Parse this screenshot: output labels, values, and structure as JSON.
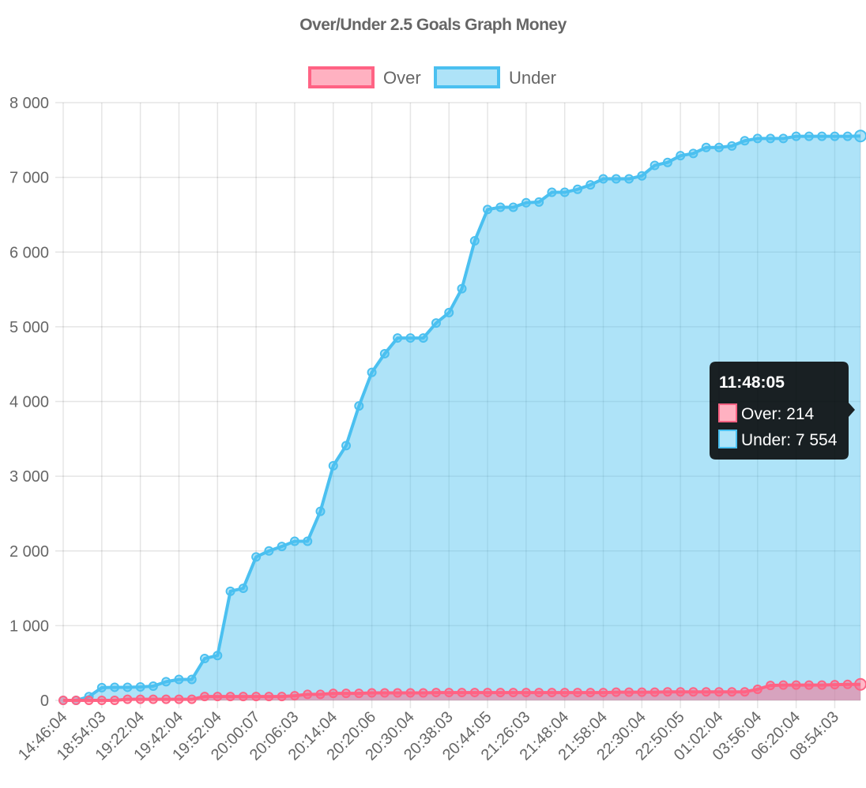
{
  "chart_data": {
    "type": "area",
    "title": "Over/Under 2.5 Goals Graph Money",
    "ylim": [
      0,
      8000
    ],
    "yticks": [
      0,
      1000,
      2000,
      3000,
      4000,
      5000,
      6000,
      7000,
      8000
    ],
    "ytick_labels": [
      "0",
      "1 000",
      "2 000",
      "3 000",
      "4 000",
      "5 000",
      "6 000",
      "7 000",
      "8 000"
    ],
    "xtick_labels": [
      "14:46:04",
      "18:54:03",
      "19:22:04",
      "19:42:04",
      "19:52:04",
      "20:00:07",
      "20:06:03",
      "20:14:04",
      "20:20:06",
      "20:30:04",
      "20:38:03",
      "20:44:05",
      "21:26:03",
      "21:48:04",
      "21:58:04",
      "22:30:04",
      "22:50:05",
      "01:02:04",
      "03:56:04",
      "06:20:04",
      "08:54:03"
    ],
    "n_points": 63,
    "grid": true,
    "legend": "top",
    "series": [
      {
        "name": "Over",
        "color": "#ff6384",
        "fill": "rgba(255,99,132,0.5)",
        "values": [
          0,
          0,
          0,
          0,
          0,
          14,
          14,
          14,
          14,
          14,
          14,
          52,
          52,
          52,
          52,
          52,
          52,
          52,
          62,
          80,
          80,
          94,
          94,
          94,
          100,
          100,
          100,
          100,
          100,
          105,
          105,
          105,
          105,
          105,
          105,
          105,
          105,
          105,
          105,
          105,
          105,
          105,
          105,
          110,
          110,
          110,
          110,
          114,
          114,
          114,
          114,
          114,
          114,
          114,
          148,
          200,
          205,
          205,
          205,
          205,
          210,
          214,
          214
        ]
      },
      {
        "name": "Under",
        "color": "#4bc0f0",
        "fill": "rgba(75,192,240,0.45)",
        "values": [
          0,
          0,
          50,
          170,
          175,
          175,
          180,
          190,
          250,
          280,
          280,
          560,
          600,
          1460,
          1500,
          1920,
          2000,
          2060,
          2130,
          2130,
          2530,
          3140,
          3410,
          3940,
          4390,
          4640,
          4850,
          4850,
          4850,
          5050,
          5190,
          5510,
          6150,
          6570,
          6600,
          6600,
          6660,
          6670,
          6800,
          6800,
          6840,
          6900,
          6980,
          6980,
          6980,
          7020,
          7160,
          7200,
          7290,
          7320,
          7400,
          7400,
          7420,
          7490,
          7520,
          7520,
          7520,
          7550,
          7550,
          7550,
          7550,
          7550,
          7554
        ]
      }
    ],
    "tooltip": {
      "title": "11:48:05",
      "lines": [
        "Over: 214",
        "Under: 7 554"
      ]
    }
  }
}
